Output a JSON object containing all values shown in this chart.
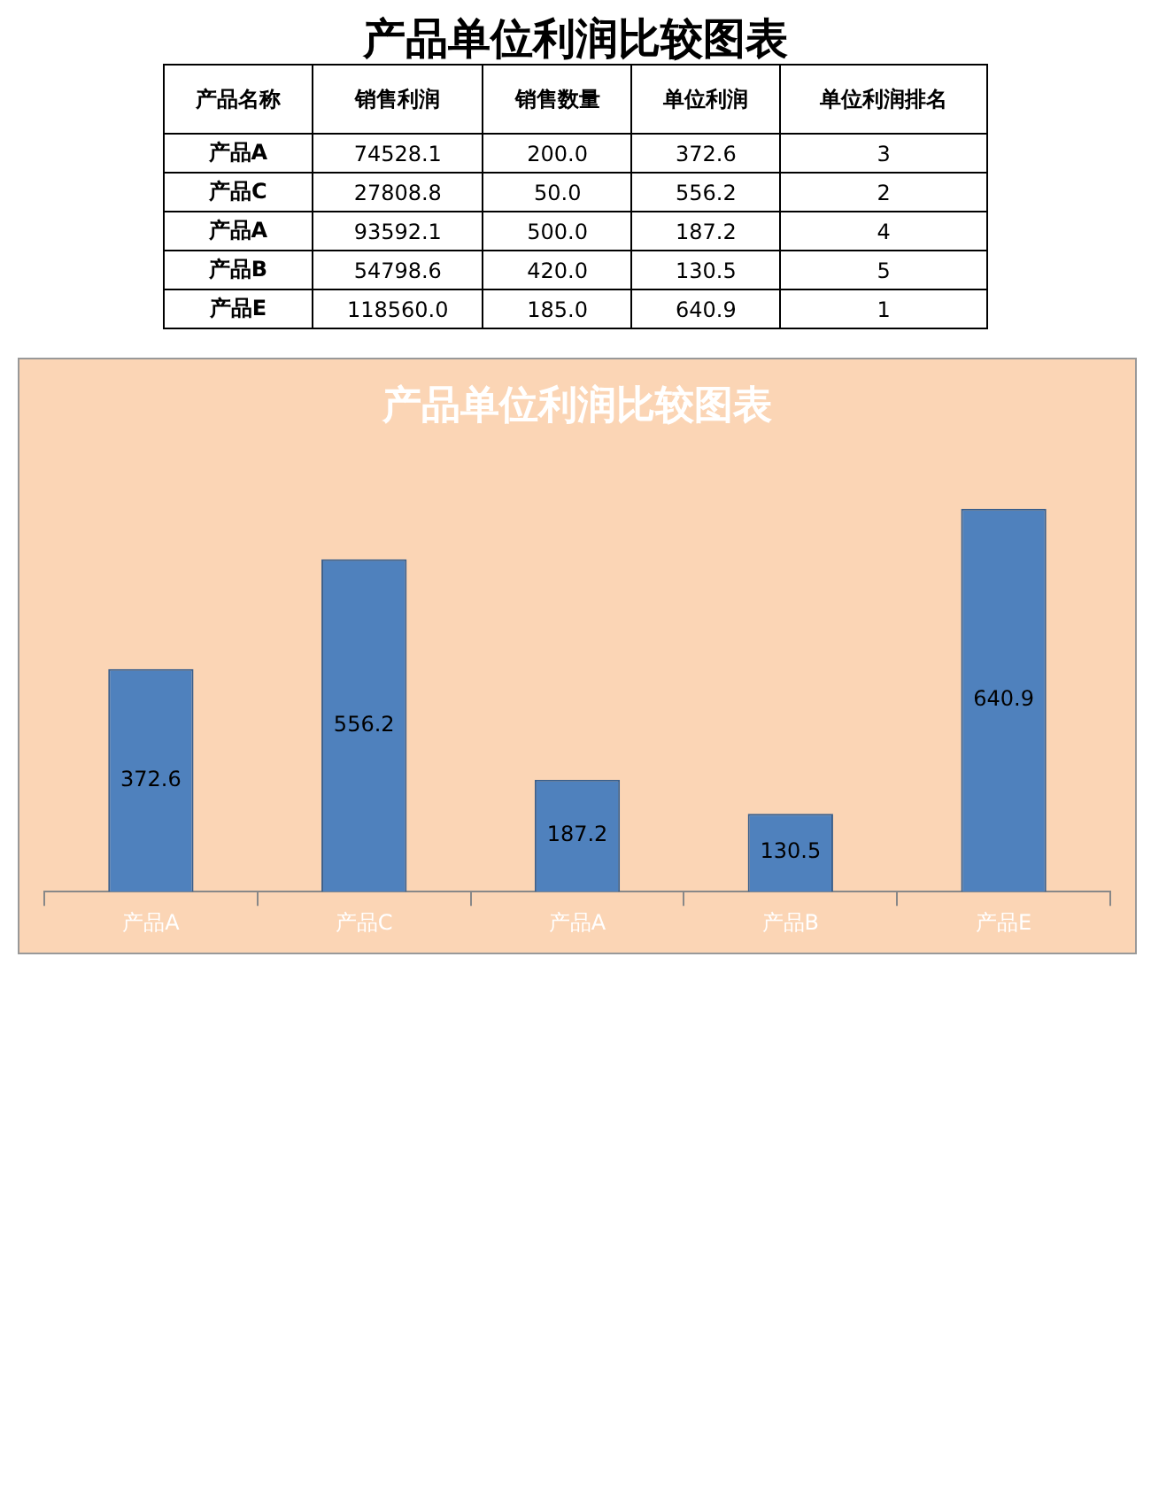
{
  "chart_data": [
    {
      "type": "other",
      "title": "产品单位利润比较图表",
      "ylabel": "产品名称",
      "categories": [
        "销售利润",
        "销售数量",
        "单位利润",
        "单位利润排名"
      ],
      "y_categories": [
        "产品A",
        "产品C",
        "产品A",
        "产品B",
        "产品E"
      ],
      "cell_labels": [
        [
          "74528.1",
          "200.0",
          "372.6",
          "3"
        ],
        [
          "27808.8",
          "50.0",
          "556.2",
          "2"
        ],
        [
          "93592.1",
          "500.0",
          "187.2",
          "4"
        ],
        [
          "54798.6",
          "420.0",
          "130.5",
          "5"
        ],
        [
          "118560.0",
          "185.0",
          "640.9",
          "1"
        ]
      ]
    },
    {
      "type": "bar",
      "title": "产品单位利润比较图表",
      "categories": [
        "产品A",
        "产品C",
        "产品A",
        "产品B",
        "产品E"
      ],
      "values": [
        372.6,
        556.2,
        187.2,
        130.5,
        640.9
      ],
      "color": "#4f81bd",
      "data_labels": true
    }
  ]
}
